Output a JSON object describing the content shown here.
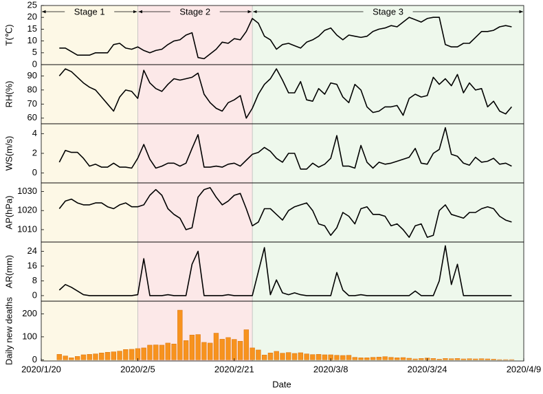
{
  "axes": {
    "xlabel": "Date",
    "xlim": [
      0,
      80
    ],
    "xticks": [
      {
        "value": 0,
        "label": "2020/1/20"
      },
      {
        "value": 16,
        "label": "2020/2/5"
      },
      {
        "value": 32,
        "label": "2020/2/21"
      },
      {
        "value": 48,
        "label": "2020/3/8"
      },
      {
        "value": 64,
        "label": "2020/3/24"
      },
      {
        "value": 80,
        "label": "2020/4/9"
      }
    ],
    "x": [
      3,
      4,
      5,
      6,
      7,
      8,
      9,
      10,
      11,
      12,
      13,
      14,
      15,
      16,
      17,
      18,
      19,
      20,
      21,
      22,
      23,
      24,
      25,
      26,
      27,
      28,
      29,
      30,
      31,
      32,
      33,
      34,
      35,
      36,
      37,
      38,
      39,
      40,
      41,
      42,
      43,
      44,
      45,
      46,
      47,
      48,
      49,
      50,
      51,
      52,
      53,
      54,
      55,
      56,
      57,
      58,
      59,
      60,
      61,
      62,
      63,
      64,
      65,
      66,
      67,
      68,
      69,
      70,
      71,
      72,
      73,
      74,
      75,
      76,
      77,
      78
    ],
    "stages": [
      {
        "label": "Stage 1",
        "range": [
          0,
          16
        ],
        "color": "#fdf8e6"
      },
      {
        "label": "Stage 2",
        "range": [
          16,
          35
        ],
        "color": "#fce8e8"
      },
      {
        "label": "Stage 3",
        "range": [
          35,
          80
        ],
        "color": "#eef8ec"
      }
    ]
  },
  "chart_data": [
    {
      "type": "line",
      "ylabel": "T(℃)",
      "color": "#000000",
      "ylim": [
        0,
        25
      ],
      "yticks": [
        0,
        5,
        10,
        15,
        20,
        25
      ],
      "values": [
        7,
        7,
        5.5,
        4,
        4,
        4,
        5,
        5,
        5,
        8.5,
        9,
        7,
        6.5,
        7.5,
        6,
        5,
        6,
        6.5,
        8.5,
        10,
        10.5,
        12.5,
        13.5,
        3,
        2.5,
        4.5,
        6.5,
        9.5,
        9,
        11,
        10.5,
        14,
        19.5,
        17.5,
        12,
        10.5,
        6.5,
        8.5,
        9,
        8,
        7,
        9.5,
        10.5,
        12,
        14.5,
        15.5,
        12.5,
        10.5,
        12.5,
        12,
        11.5,
        12,
        14,
        15,
        15.5,
        16.5,
        16,
        18,
        20,
        19,
        18,
        19.5,
        20,
        20,
        8.5,
        7.5,
        7.5,
        9,
        9,
        11.5,
        14,
        14,
        14.5,
        16,
        16.5,
        16
      ]
    },
    {
      "type": "line",
      "ylabel": "RH(%)",
      "color": "#000000",
      "ylim": [
        56,
        98
      ],
      "yticks": [
        60,
        70,
        80,
        90
      ],
      "values": [
        90,
        95,
        93,
        89,
        85,
        82,
        80,
        75,
        70,
        65,
        75,
        80,
        79,
        74,
        94,
        85,
        81,
        79,
        84,
        88,
        87,
        88,
        89,
        92,
        77,
        71,
        67,
        65,
        71,
        73,
        76,
        60,
        67,
        77,
        84,
        88,
        95,
        87,
        78,
        78,
        86,
        73,
        72,
        81,
        77,
        85,
        84,
        75,
        71,
        84,
        80,
        68,
        64,
        65,
        68,
        68,
        69,
        62,
        74,
        77,
        75,
        76,
        89,
        84,
        88,
        83,
        91,
        78,
        85,
        80,
        81,
        68,
        72,
        65,
        63,
        68
      ]
    },
    {
      "type": "line",
      "ylabel": "WS(m/s)",
      "color": "#000000",
      "ylim": [
        -1,
        5
      ],
      "yticks": [
        0,
        2,
        4
      ],
      "values": [
        1.1,
        2.3,
        2.1,
        2.1,
        1.5,
        0.7,
        0.9,
        0.6,
        0.6,
        1.0,
        0.6,
        0.6,
        0.5,
        1.5,
        2.9,
        1.4,
        0.5,
        0.7,
        1.0,
        1.0,
        0.7,
        1.0,
        2.5,
        3.9,
        0.6,
        0.6,
        0.7,
        0.6,
        0.9,
        1.0,
        0.7,
        1.3,
        1.9,
        2.1,
        2.6,
        2.2,
        1.5,
        1.1,
        2.0,
        2.0,
        0.4,
        0.4,
        1.0,
        0.6,
        0.9,
        1.5,
        3.8,
        0.7,
        0.7,
        0.5,
        2.8,
        1.1,
        0.5,
        1.1,
        0.9,
        1.0,
        1.2,
        1.4,
        1.6,
        2.5,
        1.0,
        0.9,
        2.0,
        2.4,
        4.6,
        1.9,
        1.7,
        1.0,
        0.8,
        1.6,
        1.1,
        1.2,
        1.5,
        0.9,
        1.0,
        0.7
      ]
    },
    {
      "type": "line",
      "ylabel": "AP(hPa)",
      "color": "#000000",
      "ylim": [
        1003.5,
        1034.5
      ],
      "yticks": [
        1010,
        1020,
        1030
      ],
      "values": [
        1021,
        1025,
        1026,
        1024,
        1023,
        1023,
        1024,
        1024,
        1022,
        1021,
        1023,
        1024,
        1022,
        1022,
        1023,
        1028,
        1031,
        1028,
        1021,
        1018,
        1016,
        1010,
        1011,
        1027,
        1031,
        1032,
        1027,
        1023,
        1025,
        1028,
        1029,
        1021,
        1012,
        1014,
        1021,
        1021,
        1018,
        1015,
        1020,
        1022,
        1023,
        1024,
        1020,
        1013,
        1012,
        1007,
        1011,
        1019,
        1017,
        1013,
        1021,
        1022,
        1018,
        1018,
        1017,
        1012,
        1013,
        1010,
        1006,
        1012,
        1013,
        1006,
        1007,
        1020,
        1023,
        1018,
        1017,
        1016,
        1019,
        1019,
        1021,
        1022,
        1021,
        1017,
        1015,
        1014
      ]
    },
    {
      "type": "line",
      "ylabel": "AR(mm)",
      "color": "#000000",
      "ylim": [
        -3,
        29
      ],
      "yticks": [
        0,
        8,
        16,
        24
      ],
      "values": [
        3,
        6,
        4.5,
        2.5,
        0.5,
        0,
        0,
        0,
        0,
        0,
        0,
        0,
        0,
        0.5,
        20,
        0,
        0,
        0,
        0.5,
        0,
        0,
        0,
        17,
        24,
        0,
        0,
        0,
        0,
        0.5,
        0,
        0,
        0,
        0,
        13,
        26,
        0.5,
        8.5,
        1.5,
        0.5,
        1.5,
        0.5,
        0,
        0,
        0,
        0,
        0,
        12.5,
        3,
        0,
        0,
        0.5,
        0,
        0,
        0,
        0,
        0,
        0,
        0,
        0,
        2.5,
        0,
        0,
        0,
        8,
        27,
        6,
        17,
        0,
        0,
        0,
        0,
        0,
        0,
        0,
        0,
        0
      ]
    },
    {
      "type": "bar",
      "ylabel": "Daily new deaths",
      "color": "#f7931e",
      "ylim": [
        -5,
        255
      ],
      "yticks": [
        0,
        100,
        200
      ],
      "values": [
        24,
        17,
        9,
        15,
        22,
        24,
        26,
        30,
        33,
        35,
        38,
        45,
        46,
        49,
        52,
        64,
        65,
        64,
        73,
        69,
        216,
        84,
        108,
        110,
        76,
        73,
        116,
        90,
        97,
        89,
        81,
        131,
        52,
        43,
        21,
        30,
        37,
        29,
        32,
        28,
        31,
        26,
        23,
        24,
        22,
        22,
        20,
        19,
        20,
        11,
        9,
        9,
        11,
        12,
        14,
        11,
        9,
        10,
        7,
        4,
        6,
        8,
        6,
        3,
        6,
        5,
        6,
        4,
        5,
        4,
        5,
        4,
        3,
        1,
        1,
        1
      ]
    }
  ]
}
